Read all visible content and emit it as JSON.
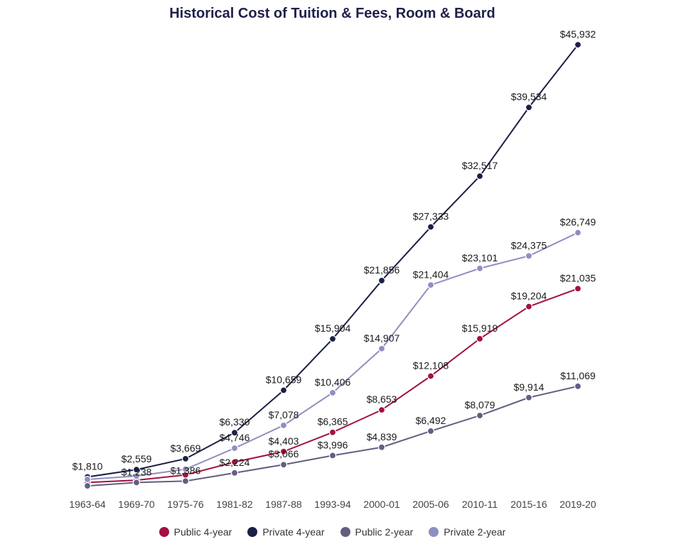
{
  "chart_data": {
    "type": "line",
    "title": "Historical Cost of Tuition & Fees, Room & Board",
    "xlabel": "",
    "ylabel": "",
    "categories": [
      "1963-64",
      "1969-70",
      "1975-76",
      "1981-82",
      "1987-88",
      "1993-94",
      "2000-01",
      "2005-06",
      "2010-11",
      "2015-16",
      "2019-20"
    ],
    "series": [
      {
        "name": "Public 4-year",
        "color": "#a3123f",
        "values": [
          1248,
          1476,
          2016,
          3324,
          4403,
          6365,
          8653,
          12108,
          15919,
          19204,
          21035
        ],
        "labels": [
          "",
          "",
          "",
          "",
          "$4,403",
          "$6,365",
          "$8,653",
          "$12,108",
          "$15,919",
          "$19,204",
          "$21,035"
        ]
      },
      {
        "name": "Private 4-year",
        "color": "#1b1f45",
        "values": [
          1810,
          2559,
          3669,
          6330,
          10659,
          15904,
          21856,
          27333,
          32517,
          39534,
          45932
        ],
        "labels": [
          "$1,810",
          "$2,559",
          "$3,669",
          "$6,330",
          "$10,659",
          "$15,904",
          "$21,856",
          "$27,333",
          "$32,517",
          "$39,534",
          "$45,932"
        ]
      },
      {
        "name": "Public 2-year",
        "color": "#625e82",
        "values": [
          900,
          1238,
          1386,
          2224,
          3066,
          3996,
          4839,
          6492,
          8079,
          9914,
          11069
        ],
        "labels": [
          "",
          "$1,238",
          "$1,386",
          "$2,224",
          "$3,066",
          "$3,996",
          "$4,839",
          "$6,492",
          "$8,079",
          "$9,914",
          "$11,069"
        ]
      },
      {
        "name": "Private 2-year",
        "color": "#8e8fc1",
        "values": [
          1560,
          1900,
          2600,
          4746,
          7078,
          10406,
          14907,
          21404,
          23101,
          24375,
          26749
        ],
        "labels": [
          "",
          "",
          "",
          "$4,746",
          "$7,078",
          "$10,406",
          "$14,907",
          "$21,404",
          "$23,101",
          "$24,375",
          "$26,749"
        ]
      }
    ],
    "ylim": [
      0,
      47000
    ],
    "grid": false,
    "legend_position": "bottom"
  }
}
